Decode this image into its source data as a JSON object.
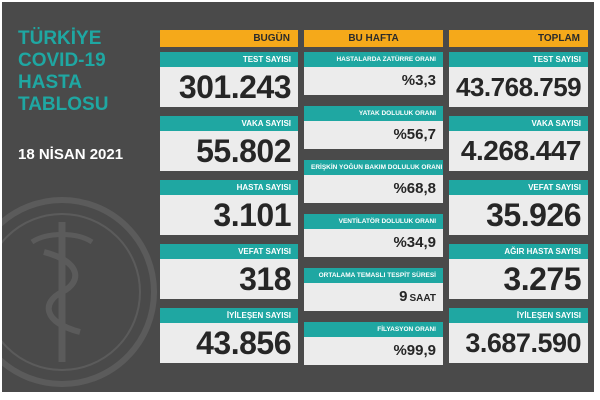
{
  "header": {
    "title_lines": [
      "TÜRKİYE",
      "COVID-19",
      "HASTA",
      "TABLOSU"
    ],
    "date": "18 NİSAN 2021"
  },
  "columns": {
    "today": "BUGÜN",
    "week": "BU HAFTA",
    "total": "TOPLAM"
  },
  "today": [
    {
      "label": "TEST SAYISI",
      "value": "301.243"
    },
    {
      "label": "VAKA SAYISI",
      "value": "55.802"
    },
    {
      "label": "HASTA SAYISI",
      "value": "3.101"
    },
    {
      "label": "VEFAT SAYISI",
      "value": "318"
    },
    {
      "label": "İYİLEŞEN SAYISI",
      "value": "43.856"
    }
  ],
  "week": [
    {
      "label": "HASTALARDA ZATÜRRE ORANI",
      "value": "%3,3"
    },
    {
      "label": "YATAK DOLULUK ORANI",
      "value": "%56,7"
    },
    {
      "label": "ERİŞKİN YOĞUN BAKIM DOLULUK ORANI",
      "value": "%68,8"
    },
    {
      "label": "VENTİLATÖR DOLULUK ORANI",
      "value": "%34,9"
    },
    {
      "label": "ORTALAMA TEMASLI TESPİT SÜRESİ",
      "value": "9",
      "suffix": "SAAT"
    },
    {
      "label": "FİLYASYON ORANI",
      "value": "%99,9"
    }
  ],
  "total": [
    {
      "label": "TEST SAYISI",
      "value": "43.768.759"
    },
    {
      "label": "VAKA SAYISI",
      "value": "4.268.447"
    },
    {
      "label": "VEFAT SAYISI",
      "value": "35.926"
    },
    {
      "label": "AĞIR HASTA SAYISI",
      "value": "3.275"
    },
    {
      "label": "İYİLEŞEN SAYISI",
      "value": "3.687.590"
    }
  ],
  "colors": {
    "teal": "#1fa7a2",
    "orange": "#f5a91a",
    "background": "#4a4a4a",
    "card": "#ececec"
  },
  "icons": [
    "ministry-emblem-icon"
  ]
}
